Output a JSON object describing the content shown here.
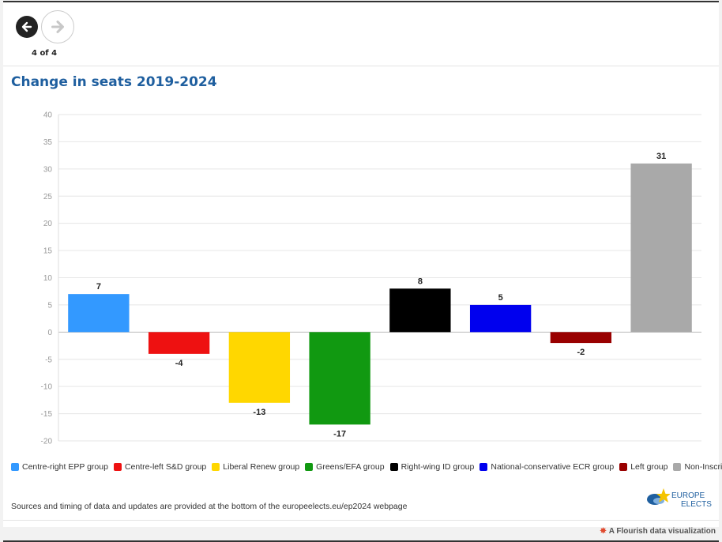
{
  "nav": {
    "back_icon": "arrow-left-icon",
    "forward_icon": "arrow-right-icon",
    "page_count": "4 of 4"
  },
  "chart_data": {
    "type": "bar",
    "title": "Change in seats 2019-2024",
    "categories": [
      "Centre-right EPP group",
      "Centre-left S&D group",
      "Liberal Renew group",
      "Greens/EFA group",
      "Right-wing ID group",
      "National-conservative ECR group",
      "Left group",
      "Non-Inscrits"
    ],
    "values": [
      7,
      -4,
      -13,
      -17,
      8,
      5,
      -2,
      31
    ],
    "colors": [
      "#3399ff",
      "#ee1111",
      "#ffd700",
      "#119911",
      "#000000",
      "#0000ee",
      "#990000",
      "#a9a9a9"
    ],
    "ylim": [
      -20,
      40
    ],
    "yticks": [
      40,
      35,
      30,
      25,
      20,
      15,
      10,
      5,
      0,
      -5,
      -10,
      -15,
      -20
    ],
    "grid": true,
    "legend_position": "bottom"
  },
  "source_text": "Sources and timing of data and updates are provided at the bottom of the europeelects.eu/ep2024 webpage",
  "logo": {
    "line1": "EUROPE",
    "line2": "ELECTS"
  },
  "credit": {
    "icon": "flourish-icon",
    "text": "A Flourish data visualization"
  }
}
